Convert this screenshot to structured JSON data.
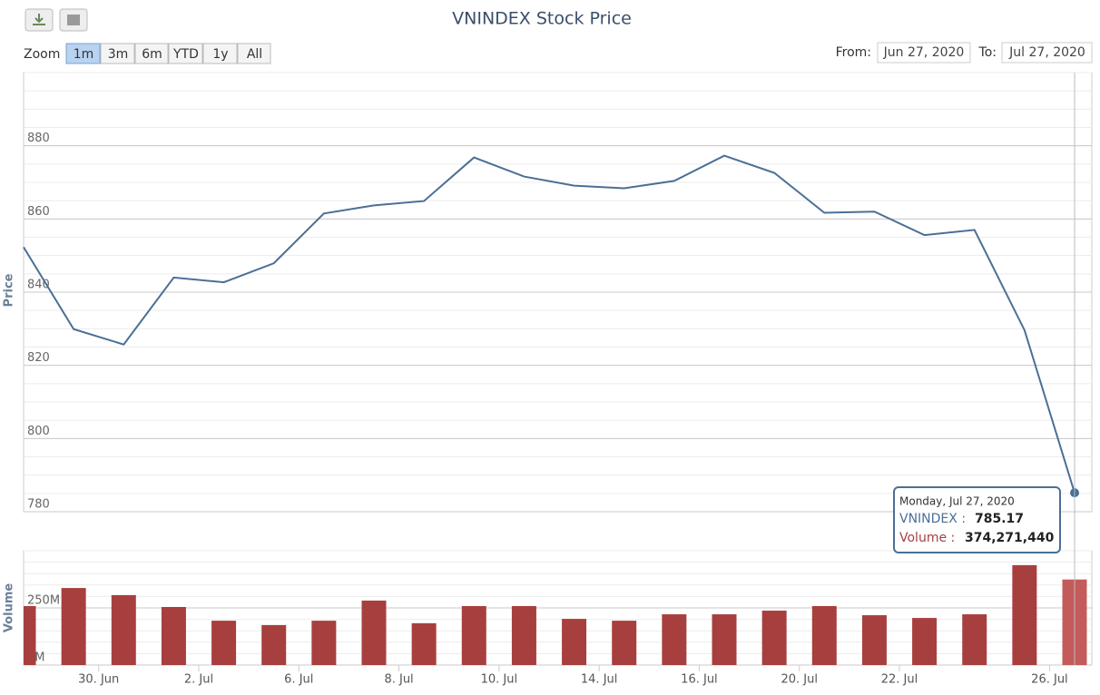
{
  "toolbar": {
    "zoom_label": "Zoom",
    "zoom_buttons": [
      "1m",
      "3m",
      "6m",
      "YTD",
      "1y",
      "All"
    ],
    "active_zoom": 0,
    "from_label": "From:",
    "from": "Jun 27, 2020",
    "to_label": "To:",
    "to": "Jul 27, 2020"
  },
  "chart_data": [
    {
      "type": "line",
      "title": "VNINDEX Stock Price",
      "y_label": "Price",
      "categories": [
        null,
        null,
        "30. Jun",
        null,
        "2. Jul",
        null,
        "6. Jul",
        null,
        "8. Jul",
        null,
        "10. Jul",
        null,
        "14. Jul",
        null,
        "16. Jul",
        null,
        "20. Jul",
        null,
        "22. Jul",
        null,
        null,
        "26. Jul"
      ],
      "series": [
        {
          "name": "VNINDEX",
          "color": "#4a6f96",
          "values": [
            852.3,
            829.9,
            825.7,
            844.0,
            842.7,
            847.9,
            861.5,
            863.7,
            864.9,
            876.8,
            871.6,
            869.1,
            868.4,
            870.4,
            877.3,
            872.6,
            861.7,
            862.0,
            855.6,
            857.0,
            829.6,
            785.17
          ]
        }
      ],
      "ylim": [
        780,
        900
      ],
      "yticks": [
        780,
        800,
        820,
        840,
        860,
        880
      ],
      "grid": true,
      "minor_grid": 5
    },
    {
      "type": "bar",
      "y_label": "Volume",
      "series": [
        {
          "name": "Volume",
          "color": "#a83f3f",
          "hover_color": "#c45b5b",
          "values": [
            258,
            337,
            306,
            254,
            194,
            175,
            194,
            282,
            183,
            258,
            258,
            202,
            194,
            222,
            222,
            238,
            258,
            218,
            206,
            222,
            437,
            374.27144
          ]
        }
      ],
      "ylim": [
        0,
        500
      ],
      "yticks": [
        {
          "value": 0,
          "label": "0M"
        },
        {
          "value": 250,
          "label": "250M"
        }
      ],
      "grid": true,
      "minor_grid": 50
    }
  ],
  "tooltip": {
    "date": "Monday, Jul 27, 2020",
    "price_name": "VNINDEX :",
    "price": "785.17",
    "volume_name": "Volume :",
    "volume": "374,271,440"
  }
}
